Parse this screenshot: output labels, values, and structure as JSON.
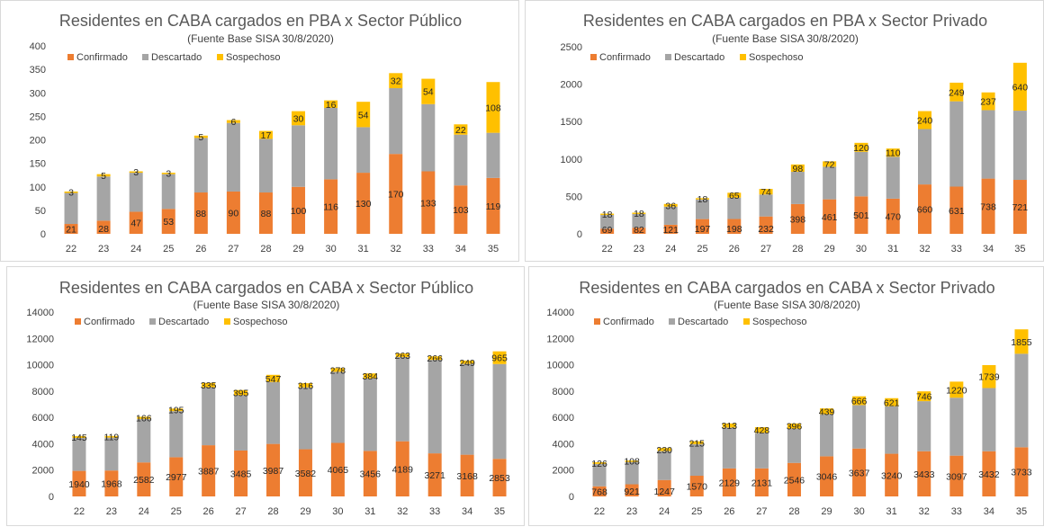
{
  "colors": {
    "confirmado": "#ED7D31",
    "descartado": "#A5A5A5",
    "sospechoso": "#FFC000"
  },
  "chart_data": [
    {
      "type": "bar",
      "stacked": true,
      "title": "Residentes en CABA cargados en PBA x Sector Público",
      "subtitle": "(Fuente  Base SISA 30/8/2020)",
      "legend": "top-left",
      "categories": [
        "22",
        "23",
        "24",
        "25",
        "26",
        "27",
        "28",
        "29",
        "30",
        "31",
        "32",
        "33",
        "34",
        "35"
      ],
      "ylim": [
        0,
        400
      ],
      "yticks": [
        0,
        50,
        100,
        150,
        200,
        250,
        300,
        350,
        400
      ],
      "series": [
        {
          "name": "Confirmado",
          "values": [
            21,
            28,
            47,
            53,
            88,
            90,
            88,
            100,
            116,
            130,
            170,
            133,
            103,
            119
          ],
          "labels": [
            "21",
            "28",
            "47",
            "53",
            "88",
            "90",
            "88",
            "100",
            "116",
            "130",
            "170",
            "133",
            "103",
            "119"
          ]
        },
        {
          "name": "Descartado",
          "values": [
            66,
            94,
            83,
            74,
            116,
            146,
            114,
            131,
            152,
            97,
            140,
            143,
            108,
            96
          ],
          "labels": []
        },
        {
          "name": "Sospechoso",
          "values": [
            3,
            5,
            3,
            3,
            5,
            6,
            17,
            30,
            16,
            54,
            32,
            54,
            22,
            108
          ],
          "labels": [
            "3",
            "5",
            "3",
            "3",
            "5",
            "6",
            "17",
            "30",
            "16",
            "54",
            "32",
            "54",
            "22",
            "108"
          ]
        }
      ]
    },
    {
      "type": "bar",
      "stacked": true,
      "title": "Residentes en CABA cargados en PBA x Sector Privado",
      "subtitle": "(Fuente  Base SISA 30/8/2020)",
      "legend": "top-left",
      "categories": [
        "22",
        "23",
        "24",
        "25",
        "26",
        "27",
        "28",
        "29",
        "30",
        "31",
        "32",
        "33",
        "34",
        "35"
      ],
      "ylim": [
        0,
        2500
      ],
      "yticks": [
        0,
        500,
        1000,
        1500,
        2000,
        2500
      ],
      "series": [
        {
          "name": "Confirmado",
          "values": [
            69,
            82,
            121,
            197,
            198,
            232,
            398,
            461,
            501,
            470,
            660,
            631,
            738,
            721
          ],
          "labels": [
            "69",
            "82",
            "121",
            "197",
            "198",
            "232",
            "398",
            "461",
            "501",
            "470",
            "660",
            "631",
            "738",
            "721"
          ]
        },
        {
          "name": "Descartado",
          "values": [
            183,
            183,
            242,
            262,
            286,
            294,
            431,
            436,
            595,
            560,
            740,
            1140,
            915,
            925
          ],
          "labels": []
        },
        {
          "name": "Sospechoso",
          "values": [
            18,
            18,
            36,
            18,
            65,
            74,
            98,
            72,
            120,
            110,
            240,
            249,
            237,
            640
          ],
          "labels": [
            "18",
            "18",
            "36",
            "18",
            "65",
            "74",
            "98",
            "72",
            "120",
            "110",
            "240",
            "249",
            "237",
            "640"
          ]
        }
      ]
    },
    {
      "type": "bar",
      "stacked": true,
      "title": "Residentes en CABA cargados en CABA x Sector Público",
      "subtitle": "(Fuente  Base SISA 30/8/2020)",
      "legend": "top-left",
      "categories": [
        "22",
        "23",
        "24",
        "25",
        "26",
        "27",
        "28",
        "29",
        "30",
        "31",
        "32",
        "33",
        "34",
        "35"
      ],
      "ylim": [
        0,
        14000
      ],
      "yticks": [
        0,
        2000,
        4000,
        6000,
        8000,
        10000,
        12000,
        14000
      ],
      "series": [
        {
          "name": "Confirmado",
          "values": [
            1940,
            1968,
            2582,
            2977,
            3887,
            3485,
            3987,
            3582,
            4065,
            3456,
            4189,
            3271,
            3168,
            2853
          ],
          "labels": [
            "1940",
            "1968",
            "2582",
            "2977",
            "3887",
            "3485",
            "3987",
            "3582",
            "4065",
            "3456",
            "4189",
            "3271",
            "3168",
            "2853"
          ]
        },
        {
          "name": "Descartado",
          "values": [
            2500,
            2500,
            3300,
            3500,
            4400,
            4200,
            4700,
            4700,
            5400,
            5500,
            6400,
            7100,
            6900,
            7200
          ],
          "labels": []
        },
        {
          "name": "Sospechoso",
          "values": [
            145,
            119,
            166,
            195,
            335,
            395,
            547,
            316,
            278,
            384,
            263,
            266,
            249,
            965
          ],
          "labels": [
            "145",
            "119",
            "166",
            "195",
            "335",
            "395",
            "547",
            "316",
            "278",
            "384",
            "263",
            "266",
            "249",
            "965"
          ]
        }
      ]
    },
    {
      "type": "bar",
      "stacked": true,
      "title": "Residentes en CABA cargados en CABA x Sector Privado",
      "subtitle": "(Fuente  Base SISA 30/8/2020)",
      "legend": "top-left",
      "categories": [
        "22",
        "23",
        "24",
        "25",
        "26",
        "27",
        "28",
        "29",
        "30",
        "31",
        "32",
        "33",
        "34",
        "35"
      ],
      "ylim": [
        0,
        14000
      ],
      "yticks": [
        0,
        2000,
        4000,
        6000,
        8000,
        10000,
        12000,
        14000
      ],
      "series": [
        {
          "name": "Confirmado",
          "values": [
            768,
            921,
            1247,
            1570,
            2129,
            2131,
            2546,
            3046,
            3637,
            3240,
            3433,
            3097,
            3432,
            3733
          ],
          "labels": [
            "768",
            "921",
            "1247",
            "1570",
            "2129",
            "2131",
            "2546",
            "3046",
            "3637",
            "3240",
            "3433",
            "3097",
            "3432",
            "3733"
          ]
        },
        {
          "name": "Descartado",
          "values": [
            1700,
            1700,
            2200,
            2400,
            3100,
            2700,
            2600,
            3200,
            3300,
            3600,
            3800,
            4400,
            4800,
            7100
          ],
          "labels": []
        },
        {
          "name": "Sospechoso",
          "values": [
            126,
            108,
            230,
            215,
            313,
            428,
            396,
            439,
            666,
            621,
            746,
            1220,
            1739,
            1855
          ],
          "labels": [
            "126",
            "108",
            "230",
            "215",
            "313",
            "428",
            "396",
            "439",
            "666",
            "621",
            "746",
            "1220",
            "1739",
            "1855"
          ]
        }
      ]
    }
  ]
}
